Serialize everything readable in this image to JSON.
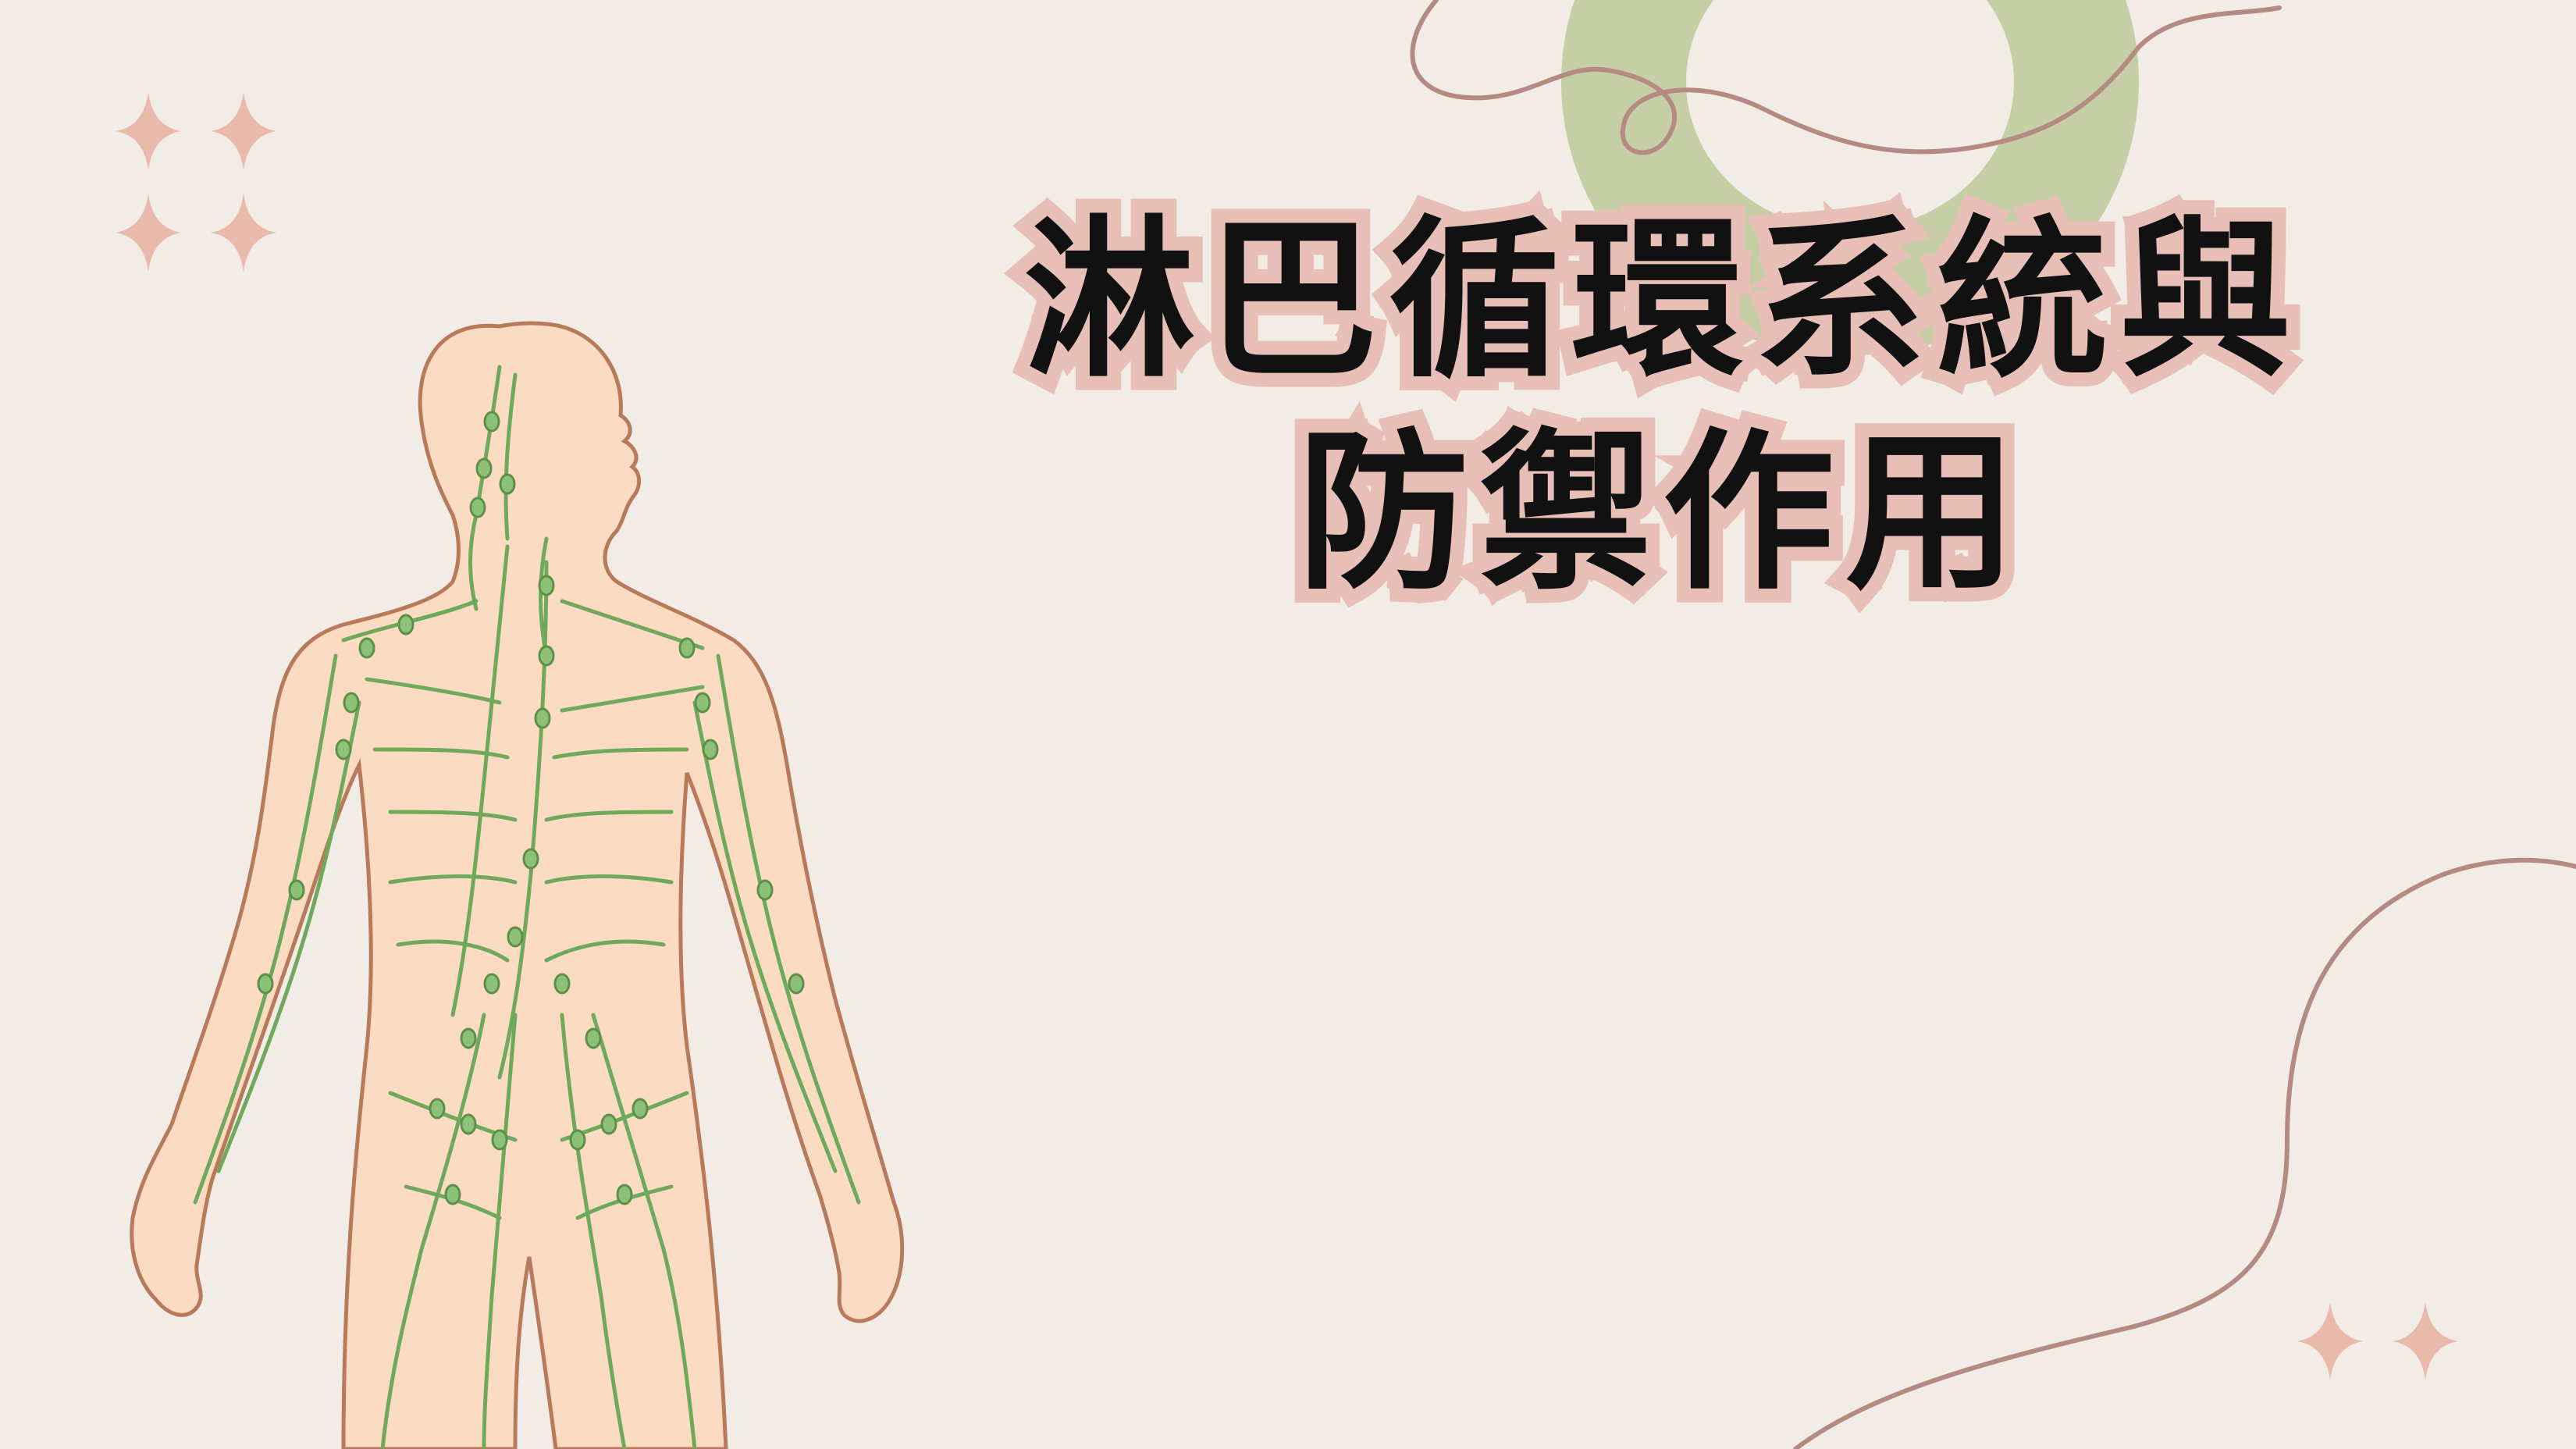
{
  "slide": {
    "title_line1": "淋巴循環系統與",
    "title_line2": "防禦作用"
  },
  "icons": {
    "top_left_sparkles": "sparkle-icon",
    "bottom_right_sparkles": "sparkle-icon",
    "illustration": "lymphatic-system-body-illustration"
  },
  "colors": {
    "background": "#f1ece6",
    "title_text": "#111111",
    "title_outline": "#e8bfb6",
    "skin": "#fbdcc3",
    "skin_outline": "#b97a5b",
    "lymph_green": "#6fa95c",
    "ring_green": "#c6cea6",
    "line_mauve": "#b58a82",
    "sparkle_pink": "#e9b9aa"
  }
}
